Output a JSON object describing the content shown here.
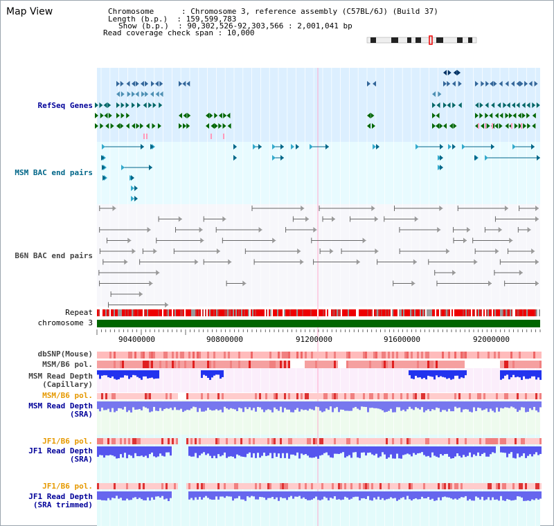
{
  "title": "Map View",
  "header": {
    "chromosome": "Chromosome      : Chromosome 3, reference assembly (C57BL/6J) (Build 37)",
    "length": "Length (b.p.)  : 159,599,783",
    "show": "Show (b.p.)  : 90,302,526-92,303,566 : 2,001,041 bp",
    "coverage": "Read coverage check span : 10,000"
  },
  "tracks": {
    "refseq": "RefSeq Genes",
    "msm_bac": "MSM BAC end pairs",
    "b6n_bac": "B6N BAC end pairs",
    "repeat": "Repeat",
    "chromosome": "chromosome 3",
    "dbsnp": "dbSNP(Mouse)",
    "msm_b6_pol_1": "MSM/B6 pol.",
    "msm_read_depth_cap_1": "MSM Read Depth",
    "msm_read_depth_cap_2": "(Capillary)",
    "msm_b6_pol_2": "MSM/B6 pol.",
    "msm_read_depth_sra_1": "MSM Read Depth",
    "msm_read_depth_sra_2": "(SRA)",
    "jf1_b6_pol_1": "JF1/B6 pol.",
    "jf1_read_depth_sra_1": "JF1 Read Depth",
    "jf1_read_depth_sra_2": "(SRA)",
    "jf1_b6_pol_2": "JF1/B6 pol.",
    "jf1_read_depth_trim_1": "JF1 Read Depth",
    "jf1_read_depth_trim_2": "(SRA trimmed)"
  },
  "axis": {
    "ticks": [
      "90400000",
      "90800000",
      "91200000",
      "91600000",
      "92000000"
    ]
  },
  "colors": {
    "refseq_bg": "#dcefff",
    "msm_bg": "#e8fbff",
    "navy_text": "#000099",
    "teal_text": "#006688",
    "gray_text": "#444444",
    "orange_text": "#e69900",
    "chrom_green": "#006600"
  }
}
